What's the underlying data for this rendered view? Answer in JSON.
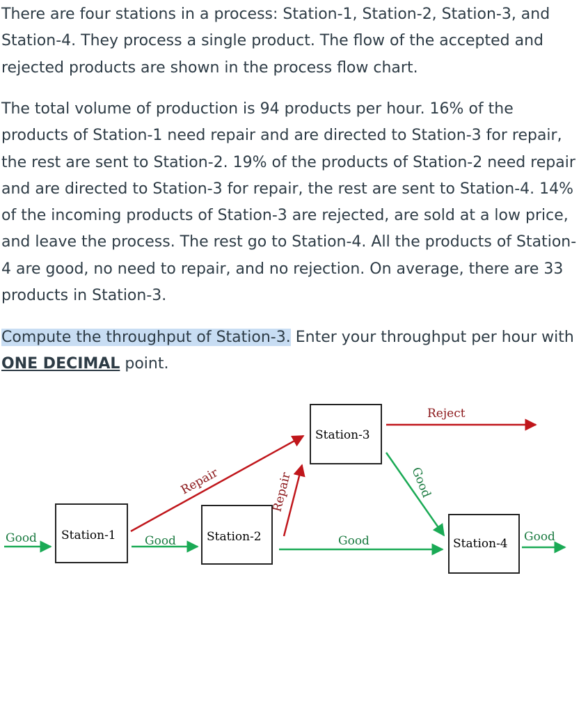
{
  "paragraph1": "There are four stations in a process: Station-1, Station-2, Station-3, and Station-4. They process a single product. The flow of the accepted and rejected products are shown in the process flow chart.",
  "paragraph2": "The total volume of production is 94 products per hour. 16% of the products of Station-1 need repair and are directed to Station-3 for repair, the rest are sent to Station-2. 19% of the products of Station-2 need repair and are directed to Station-3 for repair, the rest are sent to Station-4. 14% of the incoming products of Station-3 are rejected, are sold at a low price, and leave the process. The rest go to Station-4. All the products of Station-4 are good, no need to repair, and no rejection. On average, there are 33 products in Station-3.",
  "question": {
    "highlight": "Compute the throughput of Station-3.",
    "text_before": " Enter your throughput per hour with ",
    "emphasis": "ONE DECIMAL",
    "text_after": " point."
  },
  "diagram": {
    "stations": {
      "s1": "Station-1",
      "s2": "Station-2",
      "s3": "Station-3",
      "s4": "Station-4"
    },
    "labels": {
      "good_in": "Good",
      "good_1_2": "Good",
      "good_2_4": "Good",
      "good_3_4": "Good",
      "good_out": "Good",
      "repair_1_3": "Repair",
      "repair_2_3": "Repair",
      "reject": "Reject"
    },
    "colors": {
      "good": "#1aaa55",
      "repair": "#c0161b",
      "box": "#222222"
    }
  }
}
